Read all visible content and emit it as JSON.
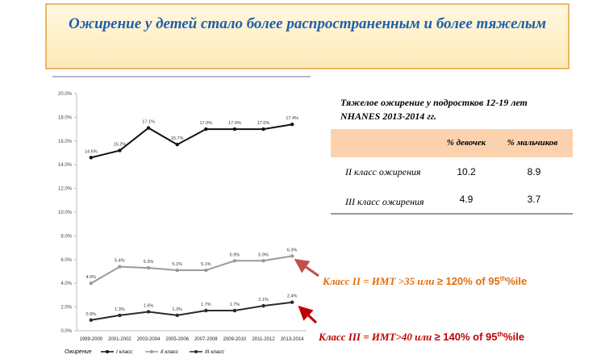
{
  "title": "Ожирение у детей  стало более распространенным и более тяжелым",
  "chart_data": {
    "type": "line",
    "categories": [
      "1999-2000",
      "2001-2002",
      "2003-2004",
      "2005-2006",
      "2007-2008",
      "2009-2010",
      "2011-2012",
      "2013-2014"
    ],
    "series": [
      {
        "name": "I класс",
        "color": "#111111",
        "values": [
          14.6,
          15.2,
          17.1,
          15.7,
          17.0,
          17.0,
          17.0,
          17.4
        ],
        "value_labels": [
          "14.6%",
          "15.2%",
          "17.1%",
          "15.7%",
          "17.0%",
          "17.0%",
          "17.0%",
          "17.4%"
        ]
      },
      {
        "name": "II класс",
        "color": "#9a9a9a",
        "values": [
          4.0,
          5.4,
          5.3,
          5.1,
          5.1,
          5.9,
          5.9,
          6.3
        ],
        "value_labels": [
          "4.0%",
          "5.4%",
          "5.3%",
          "5.1%",
          "5.1%",
          "5.9%",
          "5.9%",
          "6.3%"
        ]
      },
      {
        "name": "III класс",
        "color": "#2b2b2b",
        "values": [
          0.9,
          1.3,
          1.6,
          1.3,
          1.7,
          1.7,
          2.1,
          2.4
        ],
        "value_labels": [
          "0.9%",
          "1.3%",
          "1.6%",
          "1.3%",
          "1.7%",
          "1.7%",
          "2.1%",
          "2.4%"
        ]
      }
    ],
    "legend_title": "Ожирение",
    "ylim": [
      0,
      20
    ],
    "yticks": [
      {
        "value": 0,
        "label": "0.0%"
      },
      {
        "value": 2,
        "label": "2.0%"
      },
      {
        "value": 4,
        "label": "4.0%"
      },
      {
        "value": 6,
        "label": "6.0%"
      },
      {
        "value": 8,
        "label": "8.0%"
      },
      {
        "value": 10,
        "label": "10.0%"
      },
      {
        "value": 12,
        "label": "12.0%"
      },
      {
        "value": 14,
        "label": "14.0%"
      },
      {
        "value": 16,
        "label": "16.0%"
      },
      {
        "value": 18,
        "label": "18.0%"
      },
      {
        "value": 20,
        "label": "20.0%"
      }
    ],
    "grid": false
  },
  "table": {
    "title": [
      "Тяжелое ожирение у подростков 12-19 лет",
      "NHANES 2013-2014 гг."
    ],
    "header": [
      "% девочек",
      "% мальчиков"
    ],
    "rows": [
      [
        "II  класс ожирения",
        10.2,
        8.9
      ],
      [
        "III класс ожирения",
        4.9,
        3.7
      ]
    ]
  },
  "annotations": [
    {
      "text": [
        "Класс II = ИМТ >35 или ",
        "≥ 120% of 95",
        "th",
        "%ile"
      ],
      "color": "#e36c0a"
    },
    {
      "text": [
        "Класс III =  ИМТ>40 или  ",
        "≥ 140% of 95",
        "th",
        "%ile"
      ],
      "color": "#c00000"
    }
  ]
}
